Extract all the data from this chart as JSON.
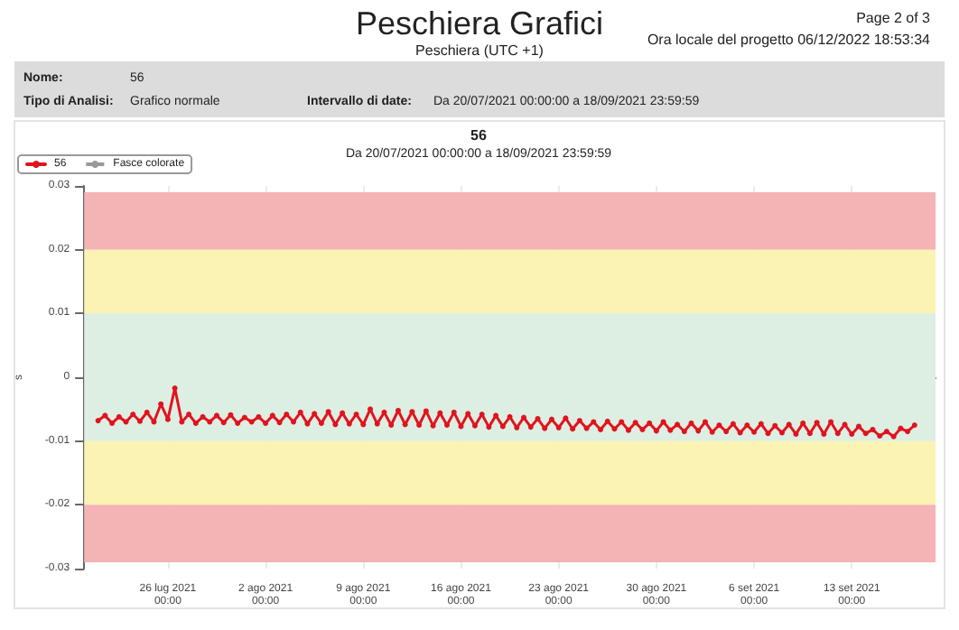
{
  "chart_data": {
    "type": "line",
    "title": "Peschiera Grafici",
    "subtitle": "Peschiera (UTC +1)",
    "ylabel": "s",
    "annotations": [
      "Page 2 of 3",
      "Ora locale del progetto 06/12/2022 18:53:34",
      "Nome:",
      "56",
      "Tipo di Analisi:",
      "Grafico normale",
      "Intervallo di date:",
      "Da 20/07/2021 00:00:00 a 18/09/2021 23:59:59",
      "56",
      "Da 20/07/2021 00:00:00 a 18/09/2021 23:59:59"
    ],
    "x": [
      "2021-07-21T00:00",
      "2021-07-21T12:00",
      "2021-07-22T00:00",
      "2021-07-22T12:00",
      "2021-07-23T00:00",
      "2021-07-23T12:00",
      "2021-07-24T00:00",
      "2021-07-24T12:00",
      "2021-07-25T00:00",
      "2021-07-25T12:00",
      "2021-07-26T00:00",
      "2021-07-26T12:00",
      "2021-07-27T00:00",
      "2021-07-27T12:00",
      "2021-07-28T00:00",
      "2021-07-28T12:00",
      "2021-07-29T00:00",
      "2021-07-29T12:00",
      "2021-07-30T00:00",
      "2021-07-30T12:00",
      "2021-07-31T00:00",
      "2021-07-31T12:00",
      "2021-08-01T00:00",
      "2021-08-01T12:00",
      "2021-08-02T00:00",
      "2021-08-02T12:00",
      "2021-08-03T00:00",
      "2021-08-03T12:00",
      "2021-08-04T00:00",
      "2021-08-04T12:00",
      "2021-08-05T00:00",
      "2021-08-05T12:00",
      "2021-08-06T00:00",
      "2021-08-06T12:00",
      "2021-08-07T00:00",
      "2021-08-07T12:00",
      "2021-08-08T00:00",
      "2021-08-08T12:00",
      "2021-08-09T00:00",
      "2021-08-09T12:00",
      "2021-08-10T00:00",
      "2021-08-10T12:00",
      "2021-08-11T00:00",
      "2021-08-11T12:00",
      "2021-08-12T00:00",
      "2021-08-12T12:00",
      "2021-08-13T00:00",
      "2021-08-13T12:00",
      "2021-08-14T00:00",
      "2021-08-14T12:00",
      "2021-08-15T00:00",
      "2021-08-15T12:00",
      "2021-08-16T00:00",
      "2021-08-16T12:00",
      "2021-08-17T00:00",
      "2021-08-17T12:00",
      "2021-08-18T00:00",
      "2021-08-18T12:00",
      "2021-08-19T00:00",
      "2021-08-19T12:00",
      "2021-08-20T00:00",
      "2021-08-20T12:00",
      "2021-08-21T00:00",
      "2021-08-21T12:00",
      "2021-08-22T00:00",
      "2021-08-22T12:00",
      "2021-08-23T00:00",
      "2021-08-23T12:00",
      "2021-08-24T00:00",
      "2021-08-24T12:00",
      "2021-08-25T00:00",
      "2021-08-25T12:00",
      "2021-08-26T00:00",
      "2021-08-26T12:00",
      "2021-08-27T00:00",
      "2021-08-27T12:00",
      "2021-08-28T00:00",
      "2021-08-28T12:00",
      "2021-08-29T00:00",
      "2021-08-29T12:00",
      "2021-08-30T00:00",
      "2021-08-30T12:00",
      "2021-08-31T00:00",
      "2021-08-31T12:00",
      "2021-09-01T00:00",
      "2021-09-01T12:00",
      "2021-09-02T00:00",
      "2021-09-02T12:00",
      "2021-09-03T00:00",
      "2021-09-03T12:00",
      "2021-09-04T00:00",
      "2021-09-04T12:00",
      "2021-09-05T00:00",
      "2021-09-05T12:00",
      "2021-09-06T00:00",
      "2021-09-06T12:00",
      "2021-09-07T00:00",
      "2021-09-07T12:00",
      "2021-09-08T00:00",
      "2021-09-08T12:00",
      "2021-09-09T00:00",
      "2021-09-09T12:00",
      "2021-09-10T00:00",
      "2021-09-10T12:00",
      "2021-09-11T00:00",
      "2021-09-11T12:00",
      "2021-09-12T00:00",
      "2021-09-12T12:00",
      "2021-09-13T00:00",
      "2021-09-13T12:00",
      "2021-09-14T00:00",
      "2021-09-14T12:00",
      "2021-09-15T00:00",
      "2021-09-15T12:00",
      "2021-09-16T00:00",
      "2021-09-16T12:00",
      "2021-09-17T00:00",
      "2021-09-17T12:00"
    ],
    "series": [
      {
        "name": "56",
        "color": "#e0141e",
        "values": [
          -0.0068,
          -0.006,
          -0.0072,
          -0.0062,
          -0.007,
          -0.0058,
          -0.0069,
          -0.0055,
          -0.007,
          -0.0042,
          -0.0066,
          -0.0017,
          -0.007,
          -0.0058,
          -0.0072,
          -0.0062,
          -0.007,
          -0.006,
          -0.0071,
          -0.0059,
          -0.0072,
          -0.0063,
          -0.007,
          -0.0062,
          -0.0072,
          -0.006,
          -0.0071,
          -0.0058,
          -0.007,
          -0.0055,
          -0.0073,
          -0.0057,
          -0.0072,
          -0.0054,
          -0.0074,
          -0.0056,
          -0.0073,
          -0.0058,
          -0.0074,
          -0.005,
          -0.0073,
          -0.0055,
          -0.0075,
          -0.0052,
          -0.0074,
          -0.0054,
          -0.0075,
          -0.0053,
          -0.0076,
          -0.0056,
          -0.0075,
          -0.0055,
          -0.0077,
          -0.0057,
          -0.0076,
          -0.0058,
          -0.0078,
          -0.006,
          -0.0077,
          -0.0062,
          -0.0079,
          -0.0063,
          -0.0078,
          -0.0065,
          -0.008,
          -0.0066,
          -0.0079,
          -0.0064,
          -0.0081,
          -0.0068,
          -0.008,
          -0.007,
          -0.0082,
          -0.0069,
          -0.0081,
          -0.007,
          -0.0083,
          -0.0071,
          -0.0082,
          -0.0072,
          -0.0084,
          -0.007,
          -0.0083,
          -0.0074,
          -0.0085,
          -0.0072,
          -0.0084,
          -0.007,
          -0.0086,
          -0.0075,
          -0.0085,
          -0.0073,
          -0.0087,
          -0.0075,
          -0.0086,
          -0.0073,
          -0.0088,
          -0.0076,
          -0.0087,
          -0.0074,
          -0.0089,
          -0.0072,
          -0.0088,
          -0.0071,
          -0.0089,
          -0.007,
          -0.0088,
          -0.0074,
          -0.0089,
          -0.0077,
          -0.0088,
          -0.0082,
          -0.0092,
          -0.0085,
          -0.0093,
          -0.008,
          -0.0085,
          -0.0075
        ]
      }
    ],
    "xlim": [
      "2021-07-20",
      "2021-09-19"
    ],
    "xticks": [
      {
        "value": "2021-07-26",
        "label": "26 lug 2021\n00:00"
      },
      {
        "value": "2021-08-02",
        "label": "2 ago 2021\n00:00"
      },
      {
        "value": "2021-08-09",
        "label": "9 ago 2021\n00:00"
      },
      {
        "value": "2021-08-16",
        "label": "16 ago 2021\n00:00"
      },
      {
        "value": "2021-08-23",
        "label": "23 ago 2021\n00:00"
      },
      {
        "value": "2021-08-30",
        "label": "30 ago 2021\n00:00"
      },
      {
        "value": "2021-09-06",
        "label": "6 set 2021\n00:00"
      },
      {
        "value": "2021-09-13",
        "label": "13 set 2021\n00:00"
      }
    ],
    "ylim": [
      -0.03,
      0.03
    ],
    "yticks": [
      -0.03,
      -0.02,
      -0.01,
      0,
      0.01,
      0.02,
      0.03
    ],
    "bands": [
      {
        "axis": "y",
        "from": 0.02,
        "to": 0.029,
        "color": "#f4b3b5",
        "label": "Fasce colorate"
      },
      {
        "axis": "y",
        "from": 0.01,
        "to": 0.02,
        "color": "#faf3b3"
      },
      {
        "axis": "y",
        "from": -0.01,
        "to": 0.01,
        "color": "#ddeee3"
      },
      {
        "axis": "y",
        "from": -0.02,
        "to": -0.01,
        "color": "#faf3b3"
      },
      {
        "axis": "y",
        "from": -0.029,
        "to": -0.02,
        "color": "#f4b3b5"
      }
    ],
    "grid": "x",
    "legend": "top left",
    "marker": "circle",
    "line_style": "solid"
  }
}
